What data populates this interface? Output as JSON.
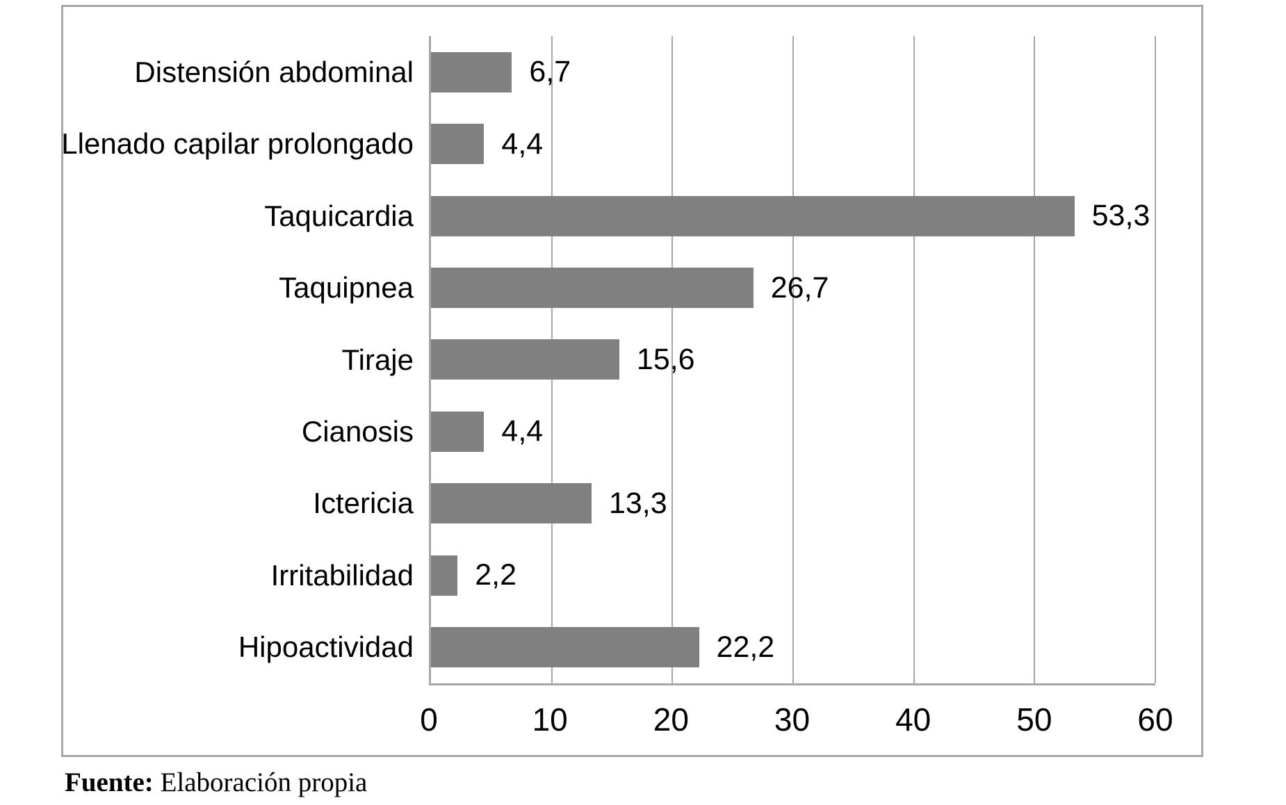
{
  "page": {
    "background": "#ffffff"
  },
  "chart_data": {
    "type": "bar",
    "orientation": "horizontal",
    "categories": [
      "Distensión abdominal",
      "Llenado capilar prolongado",
      "Taquicardia",
      "Taquipnea",
      "Tiraje",
      "Cianosis",
      "Ictericia",
      "Irritabilidad",
      "Hipoactividad"
    ],
    "values": [
      6.7,
      4.4,
      53.3,
      26.7,
      15.6,
      4.4,
      13.3,
      2.2,
      22.2
    ],
    "value_labels": [
      "6,7",
      "4,4",
      "53,3",
      "26,7",
      "15,6",
      "4,4",
      "13,3",
      "2,2",
      "22,2"
    ],
    "xlim": [
      0,
      60
    ],
    "x_ticks": [
      0,
      10,
      20,
      30,
      40,
      50,
      60
    ],
    "x_tick_labels": [
      "0",
      "10",
      "20",
      "30",
      "40",
      "50",
      "60"
    ],
    "grid": "vertical-gridlines-every-10",
    "legend": "none",
    "colors": {
      "bar": "#808080",
      "gridline": "#a6a6a6",
      "axis": "#a6a6a6",
      "frame": "#a6a6a6",
      "text": "#000000"
    }
  },
  "source_note": {
    "prefix": "Fuente:",
    "text": " Elaboración propia"
  }
}
